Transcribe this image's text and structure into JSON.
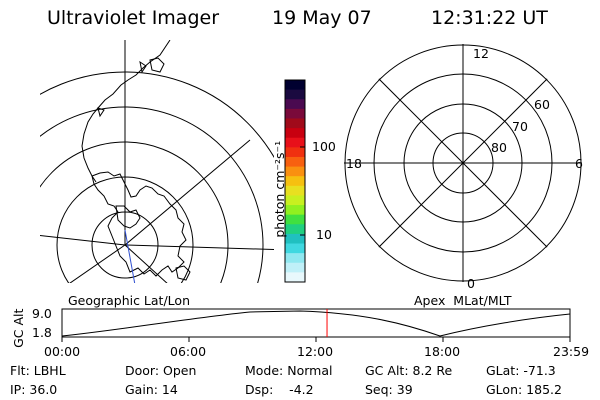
{
  "header": {
    "title": "Ultraviolet Imager",
    "date": "19 May 07",
    "time": "12:31:22 UT"
  },
  "colorbar": {
    "unit_label": "photon cm⁻²s⁻¹",
    "tick_labels": [
      "100",
      "10"
    ],
    "colors_top_to_bottom": [
      "#000030",
      "#1a0a40",
      "#4a0a50",
      "#7a0a3a",
      "#a00a1a",
      "#c80010",
      "#e8101a",
      "#f03010",
      "#f86010",
      "#fa9010",
      "#f6c010",
      "#e8e020",
      "#c8f020",
      "#90f020",
      "#40e040",
      "#20d080",
      "#20c0c0",
      "#40d8e0",
      "#90e8f0",
      "#c0f0f8",
      "#e8f8fc"
    ]
  },
  "polar_plot": {
    "mlt_labels": {
      "top": "12",
      "left": "18",
      "right": "6",
      "bottom": "0"
    },
    "mlat_labels": [
      "60",
      "70",
      "80"
    ]
  },
  "panels": {
    "left_caption": "Geographic Lat/Lon",
    "right_caption": "Apex  MLat/MLT"
  },
  "alt_strip": {
    "axis_label": "GC Alt",
    "ymax": "9.0",
    "ymin": "1.8",
    "x_ticks": [
      "00:00",
      "06:00",
      "12:00",
      "18:00",
      "23:59"
    ],
    "current_time_fraction": 0.5217,
    "marker_color": "#ff0000"
  },
  "footer": {
    "flt": "Flt: LBHL",
    "ip": "IP: 36.0",
    "door": "Door: Open",
    "gain": "Gain: 14",
    "mode": "Mode: Normal",
    "dsp": "Dsp:    -4.2",
    "gcalt": "GC Alt: 8.2 Re",
    "seq": "Seq: 39",
    "glat": "GLat: -71.3",
    "glon": "GLon: 185.2"
  }
}
